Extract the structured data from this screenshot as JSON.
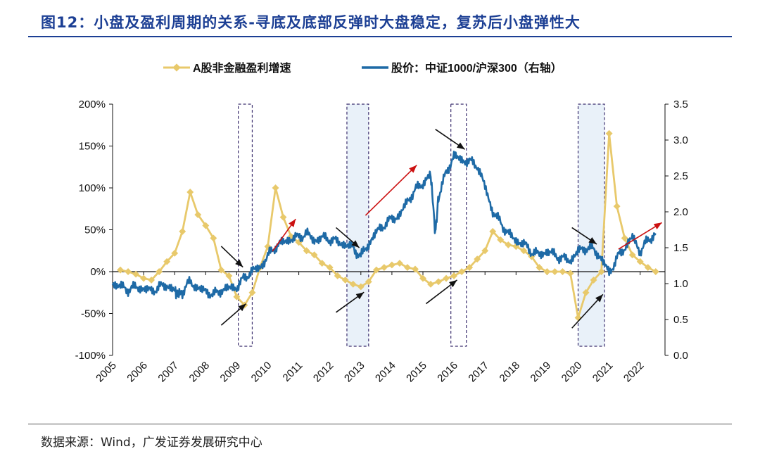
{
  "page": {
    "title": "图12：小盘及盈利周期的关系-寻底及底部反弹时大盘稳定，复苏后小盘弹性大",
    "source": "数据来源：Wind，广发证券发展研究中心"
  },
  "colors": {
    "earnings": "#e8c96b",
    "price": "#1e6aa6",
    "axis": "#111111",
    "title": "#1c3f94",
    "box_border": "#3b2e6e",
    "box_fill": "#e9f1f9",
    "arrow_red": "#cc1111",
    "arrow_black": "#111111"
  },
  "chart_data": {
    "type": "line",
    "title": "",
    "xlabel": "",
    "ylabel_left": "",
    "ylabel_right": "",
    "x_range": [
      2005,
      2022.8
    ],
    "x_ticks": [
      2005,
      2006,
      2007,
      2008,
      2009,
      2010,
      2011,
      2012,
      2013,
      2014,
      2015,
      2016,
      2017,
      2018,
      2019,
      2020,
      2021,
      2022
    ],
    "x_tick_labels": [
      "2005",
      "2006",
      "2007",
      "2008",
      "2009",
      "2010",
      "2011",
      "2012",
      "2013",
      "2014",
      "2015",
      "2016",
      "2017",
      "2018",
      "2019",
      "2020",
      "2021",
      "2022"
    ],
    "y_left": {
      "min": -100,
      "max": 200,
      "ticks": [
        -100,
        -50,
        0,
        50,
        100,
        150,
        200
      ],
      "labels": [
        "-100%",
        "-50%",
        "0%",
        "50%",
        "100%",
        "150%",
        "200%"
      ]
    },
    "y_right": {
      "min": 0,
      "max": 3.5,
      "ticks": [
        0,
        0.5,
        1,
        1.5,
        2,
        2.5,
        3,
        3.5
      ],
      "labels": [
        "0.0",
        "0.5",
        "1.0",
        "1.5",
        "2.0",
        "2.5",
        "3.0",
        "3.5"
      ]
    },
    "legend": {
      "placement": "top-center",
      "items": [
        "A股非金融盈利增速",
        "股价：中证1000/沪深300（右轴）"
      ]
    },
    "series": [
      {
        "name": "A股非金融盈利增速",
        "axis": "left",
        "marker": "diamond",
        "points": [
          [
            2005.25,
            2
          ],
          [
            2005.5,
            0
          ],
          [
            2005.75,
            -3
          ],
          [
            2006.0,
            -8
          ],
          [
            2006.25,
            -10
          ],
          [
            2006.5,
            0
          ],
          [
            2006.75,
            12
          ],
          [
            2007.0,
            22
          ],
          [
            2007.25,
            48
          ],
          [
            2007.5,
            95
          ],
          [
            2007.75,
            68
          ],
          [
            2008.0,
            55
          ],
          [
            2008.25,
            40
          ],
          [
            2008.5,
            2
          ],
          [
            2008.75,
            -5
          ],
          [
            2009.0,
            -30
          ],
          [
            2009.25,
            -40
          ],
          [
            2009.5,
            -25
          ],
          [
            2009.75,
            5
          ],
          [
            2010.0,
            30
          ],
          [
            2010.25,
            100
          ],
          [
            2010.5,
            65
          ],
          [
            2010.75,
            42
          ],
          [
            2011.0,
            35
          ],
          [
            2011.25,
            25
          ],
          [
            2011.5,
            20
          ],
          [
            2011.75,
            10
          ],
          [
            2012.0,
            5
          ],
          [
            2012.25,
            -5
          ],
          [
            2012.5,
            -10
          ],
          [
            2012.75,
            -15
          ],
          [
            2013.0,
            -18
          ],
          [
            2013.25,
            -12
          ],
          [
            2013.5,
            2
          ],
          [
            2013.75,
            5
          ],
          [
            2014.0,
            8
          ],
          [
            2014.25,
            10
          ],
          [
            2014.5,
            5
          ],
          [
            2014.75,
            3
          ],
          [
            2015.0,
            -8
          ],
          [
            2015.25,
            -15
          ],
          [
            2015.5,
            -12
          ],
          [
            2015.75,
            -8
          ],
          [
            2016.0,
            -5
          ],
          [
            2016.25,
            0
          ],
          [
            2016.5,
            5
          ],
          [
            2016.75,
            15
          ],
          [
            2017.0,
            25
          ],
          [
            2017.25,
            48
          ],
          [
            2017.5,
            38
          ],
          [
            2017.75,
            32
          ],
          [
            2018.0,
            30
          ],
          [
            2018.25,
            25
          ],
          [
            2018.5,
            18
          ],
          [
            2018.75,
            5
          ],
          [
            2019.0,
            0
          ],
          [
            2019.25,
            0
          ],
          [
            2019.5,
            0
          ],
          [
            2019.75,
            -2
          ],
          [
            2020.0,
            -55
          ],
          [
            2020.25,
            -25
          ],
          [
            2020.5,
            -10
          ],
          [
            2020.75,
            0
          ],
          [
            2021.0,
            165
          ],
          [
            2021.25,
            78
          ],
          [
            2021.5,
            40
          ],
          [
            2021.75,
            20
          ],
          [
            2022.0,
            12
          ],
          [
            2022.25,
            5
          ],
          [
            2022.5,
            0
          ]
        ]
      },
      {
        "name": "股价：中证1000/沪深300（右轴）",
        "axis": "right",
        "marker": "none",
        "points": [
          [
            2005.0,
            1.0
          ],
          [
            2005.25,
            0.96
          ],
          [
            2005.5,
            0.92
          ],
          [
            2005.75,
            0.95
          ],
          [
            2006.0,
            0.93
          ],
          [
            2006.25,
            0.9
          ],
          [
            2006.5,
            0.95
          ],
          [
            2006.75,
            0.98
          ],
          [
            2007.0,
            0.9
          ],
          [
            2007.1,
            0.85
          ],
          [
            2007.25,
            0.88
          ],
          [
            2007.5,
            1.03
          ],
          [
            2007.75,
            0.93
          ],
          [
            2008.0,
            0.9
          ],
          [
            2008.25,
            0.84
          ],
          [
            2008.5,
            0.91
          ],
          [
            2008.75,
            0.94
          ],
          [
            2009.0,
            0.95
          ],
          [
            2009.25,
            1.08
          ],
          [
            2009.5,
            1.18
          ],
          [
            2009.75,
            1.22
          ],
          [
            2010.0,
            1.38
          ],
          [
            2010.25,
            1.52
          ],
          [
            2010.5,
            1.58
          ],
          [
            2010.75,
            1.62
          ],
          [
            2011.0,
            1.65
          ],
          [
            2011.25,
            1.7
          ],
          [
            2011.5,
            1.6
          ],
          [
            2011.75,
            1.64
          ],
          [
            2012.0,
            1.62
          ],
          [
            2012.25,
            1.58
          ],
          [
            2012.5,
            1.54
          ],
          [
            2012.75,
            1.5
          ],
          [
            2013.0,
            1.38
          ],
          [
            2013.25,
            1.55
          ],
          [
            2013.5,
            1.72
          ],
          [
            2013.75,
            1.82
          ],
          [
            2014.0,
            1.9
          ],
          [
            2014.25,
            1.95
          ],
          [
            2014.5,
            2.15
          ],
          [
            2014.75,
            2.3
          ],
          [
            2015.0,
            2.4
          ],
          [
            2015.25,
            2.52
          ],
          [
            2015.4,
            1.7
          ],
          [
            2015.5,
            2.2
          ],
          [
            2015.75,
            2.55
          ],
          [
            2016.0,
            2.78
          ],
          [
            2016.25,
            2.72
          ],
          [
            2016.5,
            2.7
          ],
          [
            2016.75,
            2.65
          ],
          [
            2017.0,
            2.35
          ],
          [
            2017.25,
            2.0
          ],
          [
            2017.5,
            1.85
          ],
          [
            2017.75,
            1.7
          ],
          [
            2018.0,
            1.6
          ],
          [
            2018.25,
            1.55
          ],
          [
            2018.5,
            1.45
          ],
          [
            2018.75,
            1.4
          ],
          [
            2019.0,
            1.45
          ],
          [
            2019.25,
            1.4
          ],
          [
            2019.5,
            1.35
          ],
          [
            2019.75,
            1.32
          ],
          [
            2020.0,
            1.45
          ],
          [
            2020.25,
            1.5
          ],
          [
            2020.5,
            1.48
          ],
          [
            2020.75,
            1.35
          ],
          [
            2021.0,
            1.15
          ],
          [
            2021.25,
            1.35
          ],
          [
            2021.5,
            1.5
          ],
          [
            2021.75,
            1.65
          ],
          [
            2022.0,
            1.45
          ],
          [
            2022.25,
            1.6
          ],
          [
            2022.5,
            1.7
          ]
        ]
      }
    ],
    "highlight_periods": [
      [
        2009.05,
        2009.5
      ],
      [
        2012.55,
        2013.25
      ],
      [
        2015.9,
        2016.4
      ],
      [
        2020.0,
        2020.85
      ]
    ],
    "arrows": [
      {
        "color": "red",
        "from": [
          2010.15,
          1.45
        ],
        "to": [
          2010.9,
          1.9
        ]
      },
      {
        "color": "red",
        "from": [
          2013.15,
          1.95
        ],
        "to": [
          2014.8,
          2.65
        ]
      },
      {
        "color": "red",
        "from": [
          2021.3,
          1.48
        ],
        "to": [
          2022.7,
          1.85
        ]
      },
      {
        "color": "black",
        "from": [
          2008.5,
          1.52
        ],
        "to": [
          2009.2,
          1.23
        ]
      },
      {
        "color": "black",
        "from": [
          2008.5,
          0.42
        ],
        "to": [
          2009.3,
          0.72
        ]
      },
      {
        "color": "black",
        "from": [
          2012.2,
          1.78
        ],
        "to": [
          2012.95,
          1.5
        ]
      },
      {
        "color": "black",
        "from": [
          2012.2,
          0.6
        ],
        "to": [
          2013.1,
          0.88
        ]
      },
      {
        "color": "black",
        "from": [
          2015.4,
          3.15
        ],
        "to": [
          2016.35,
          2.87
        ]
      },
      {
        "color": "black",
        "from": [
          2015.1,
          0.72
        ],
        "to": [
          2016.1,
          1.05
        ]
      },
      {
        "color": "black",
        "from": [
          2019.8,
          1.78
        ],
        "to": [
          2020.6,
          1.55
        ]
      },
      {
        "color": "black",
        "from": [
          2019.8,
          0.38
        ],
        "to": [
          2020.8,
          0.85
        ]
      }
    ]
  }
}
